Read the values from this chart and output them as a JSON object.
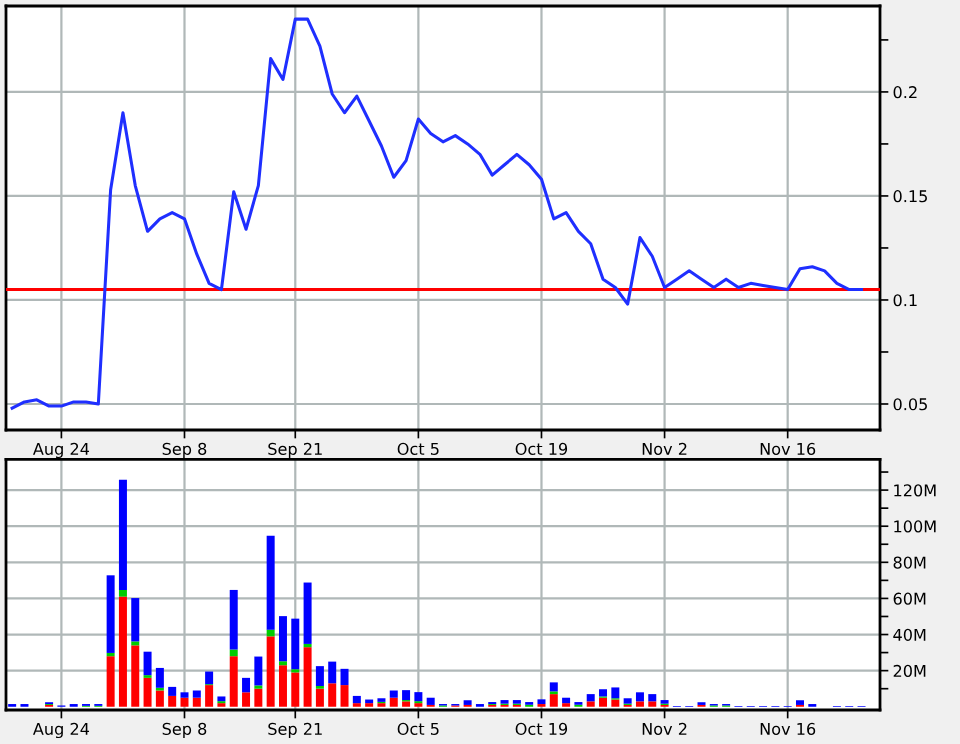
{
  "chart_data": [
    {
      "type": "line",
      "categories": [
        null,
        null,
        null,
        null,
        "Aug 24",
        null,
        null,
        null,
        null,
        null,
        null,
        null,
        null,
        null,
        "Sep 8",
        null,
        null,
        null,
        null,
        null,
        null,
        null,
        null,
        "Sep 21",
        null,
        null,
        null,
        null,
        null,
        null,
        null,
        null,
        null,
        "Oct 5",
        null,
        null,
        null,
        null,
        null,
        null,
        null,
        null,
        null,
        "Oct 19",
        null,
        null,
        null,
        null,
        null,
        null,
        null,
        null,
        null,
        "Nov 2",
        null,
        null,
        null,
        null,
        null,
        null,
        null,
        null,
        null,
        "Nov 16",
        null,
        null,
        null,
        null,
        null,
        null
      ],
      "series": [
        {
          "color": "#1f2fff",
          "values": [
            0.048,
            0.051,
            0.052,
            0.049,
            0.049,
            0.051,
            0.051,
            0.05,
            0.153,
            0.19,
            0.155,
            0.133,
            0.139,
            0.142,
            0.139,
            0.122,
            0.108,
            0.105,
            0.152,
            0.134,
            0.155,
            0.216,
            0.206,
            0.235,
            0.235,
            0.222,
            0.199,
            0.19,
            0.198,
            0.186,
            0.174,
            0.159,
            0.167,
            0.187,
            0.18,
            0.176,
            0.179,
            0.175,
            0.17,
            0.16,
            0.165,
            0.17,
            0.165,
            0.158,
            0.139,
            0.142,
            0.133,
            0.127,
            0.11,
            0.106,
            0.098,
            0.13,
            0.121,
            0.106,
            0.11,
            0.114,
            0.11,
            0.106,
            0.11,
            0.106,
            0.108,
            0.107,
            0.106,
            0.105,
            0.115,
            0.116,
            0.114,
            0.108,
            0.105,
            0.105
          ]
        }
      ],
      "ylim": [
        0.0375,
        0.2413
      ],
      "yticks": [
        0.05,
        {
          "value": 0.075,
          "label": null
        },
        0.1,
        {
          "value": 0.125,
          "label": null
        },
        0.15,
        {
          "value": 0.175,
          "label": null
        },
        0.2,
        {
          "value": 0.225,
          "label": null
        }
      ],
      "ref_lines": [
        {
          "axis": "y",
          "value": 0.105,
          "color": "#ff0000"
        }
      ],
      "grid": true,
      "legend": false
    },
    {
      "type": "bar",
      "stacked": true,
      "categories": [
        null,
        null,
        null,
        null,
        "Aug 24",
        null,
        null,
        null,
        null,
        null,
        null,
        null,
        null,
        null,
        "Sep 8",
        null,
        null,
        null,
        null,
        null,
        null,
        null,
        null,
        "Sep 21",
        null,
        null,
        null,
        null,
        null,
        null,
        null,
        null,
        null,
        "Oct 5",
        null,
        null,
        null,
        null,
        null,
        null,
        null,
        null,
        null,
        "Oct 19",
        null,
        null,
        null,
        null,
        null,
        null,
        null,
        null,
        null,
        "Nov 2",
        null,
        null,
        null,
        null,
        null,
        null,
        null,
        null,
        null,
        "Nov 16",
        null,
        null,
        null,
        null,
        null,
        null
      ],
      "series": [
        {
          "color": "#ff0000",
          "values": [
            0,
            0,
            0,
            1,
            0,
            0,
            0,
            0,
            28,
            61,
            34,
            16,
            9,
            6,
            5,
            5,
            12,
            2,
            28,
            8,
            10,
            39,
            23,
            19,
            33,
            10,
            13,
            12,
            2,
            2,
            2,
            5,
            3,
            2,
            1,
            0,
            0.7,
            1,
            0,
            1,
            1,
            1,
            0,
            1.5,
            7,
            2,
            0,
            3,
            5,
            4,
            1,
            3,
            3,
            1,
            0,
            0,
            1,
            0,
            0,
            0,
            0,
            0,
            0,
            0,
            1,
            0,
            0,
            0,
            0,
            0
          ]
        },
        {
          "color": "#00cc00",
          "values": [
            0,
            0,
            0,
            0.5,
            0,
            0,
            0.5,
            0.5,
            1.8,
            3.7,
            2.2,
            1.5,
            1.5,
            0,
            0,
            0,
            0.5,
            1.1,
            3.7,
            0,
            1.8,
            3.7,
            2.2,
            1.8,
            1.8,
            1.5,
            0,
            0,
            0,
            0,
            0.7,
            0,
            0.7,
            1.1,
            0,
            0.7,
            0,
            0,
            0,
            0.5,
            0.7,
            0.7,
            1.1,
            0,
            1.5,
            0,
            1.1,
            0,
            0.7,
            0.7,
            0.7,
            0,
            0,
            0.7,
            0,
            0,
            0,
            0.7,
            0.7,
            0,
            0,
            0,
            0,
            0,
            0,
            0,
            0,
            0,
            0,
            0
          ]
        },
        {
          "color": "#0000ff",
          "values": [
            1.5,
            1.5,
            0,
            1,
            0.7,
            1.5,
            1,
            1,
            43,
            61,
            24,
            13,
            11,
            5,
            3,
            4,
            7,
            2.6,
            33,
            8,
            16,
            52,
            25,
            28,
            34,
            11,
            12,
            9,
            4,
            2,
            2,
            4,
            5.5,
            5,
            4,
            0.8,
            0.8,
            2.6,
            1.5,
            1.1,
            2,
            2,
            1.5,
            2.6,
            5,
            3,
            1.5,
            4,
            4,
            6,
            3,
            5,
            4,
            2,
            0.4,
            0.4,
            1.5,
            0.8,
            0.8,
            0.4,
            0.4,
            0.4,
            0.4,
            0.4,
            2.6,
            1.5,
            0,
            0.4,
            0.4,
            0.4
          ]
        }
      ],
      "ylim": [
        -1.8,
        137
      ],
      "yticks": [
        {
          "value": 10,
          "label": null
        },
        {
          "value": 20,
          "label": "20M"
        },
        {
          "value": 30,
          "label": null
        },
        {
          "value": 40,
          "label": "40M"
        },
        {
          "value": 50,
          "label": null
        },
        {
          "value": 60,
          "label": "60M"
        },
        {
          "value": 70,
          "label": null
        },
        {
          "value": 80,
          "label": "80M"
        },
        {
          "value": 90,
          "label": null
        },
        {
          "value": 100,
          "label": "100M"
        },
        {
          "value": 110,
          "label": null
        },
        {
          "value": 120,
          "label": "120M"
        },
        {
          "value": 130,
          "label": null
        }
      ],
      "grid": true,
      "legend": false
    }
  ]
}
